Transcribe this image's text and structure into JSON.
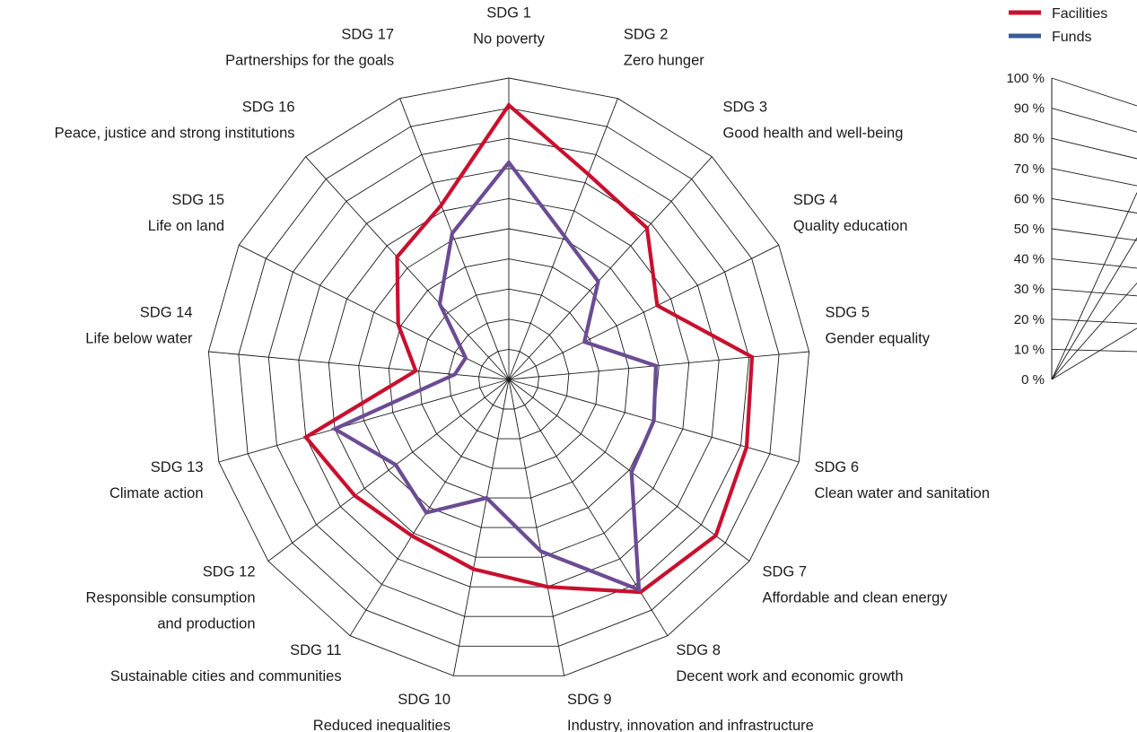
{
  "chart_data": {
    "type": "radar",
    "categories": [
      {
        "code": "SDG 1",
        "name": "No poverty"
      },
      {
        "code": "SDG 2",
        "name": "Zero hunger"
      },
      {
        "code": "SDG 3",
        "name": "Good health and well-being"
      },
      {
        "code": "SDG 4",
        "name": "Quality education"
      },
      {
        "code": "SDG 5",
        "name": "Gender equality"
      },
      {
        "code": "SDG 6",
        "name": "Clean water and sanitation"
      },
      {
        "code": "SDG 7",
        "name": "Affordable and clean energy"
      },
      {
        "code": "SDG 8",
        "name": "Decent work and economic growth"
      },
      {
        "code": "SDG 9",
        "name": "Industry, innovation and infrastructure"
      },
      {
        "code": "SDG 10",
        "name": "Reduced inequalities"
      },
      {
        "code": "SDG 11",
        "name": "Sustainable cities and communities"
      },
      {
        "code": "SDG 12",
        "name": "Responsible consumption and production"
      },
      {
        "code": "SDG 13",
        "name": "Climate action"
      },
      {
        "code": "SDG 14",
        "name": "Life below water"
      },
      {
        "code": "SDG 15",
        "name": "Life on land"
      },
      {
        "code": "SDG 16",
        "name": "Peace, justice and strong institutions"
      },
      {
        "code": "SDG 17",
        "name": "Partnerships for the goals"
      }
    ],
    "series": [
      {
        "name": "Facilities",
        "color": "#c8102e",
        "values": [
          91,
          73,
          68,
          55,
          81,
          82,
          86,
          83,
          70,
          64,
          61,
          64,
          70,
          31,
          41,
          55,
          62
        ]
      },
      {
        "name": "Funds",
        "color": "#6b4c93",
        "values": [
          72,
          51,
          44,
          28,
          49,
          50,
          51,
          82,
          58,
          40,
          52,
          47,
          60,
          18,
          16,
          34,
          52
        ]
      }
    ],
    "legend": [
      {
        "label": "Facilities",
        "color": "#c8102e"
      },
      {
        "label": "Funds",
        "color": "#3a5a98"
      }
    ],
    "legend_position": "top-right",
    "radial_axis": {
      "min": 0,
      "max": 100,
      "ticks": [
        "0 %",
        "10 %",
        "20 %",
        "30 %",
        "40 %",
        "50 %",
        "60 %",
        "70 %",
        "80 %",
        "90 %",
        "100 %"
      ],
      "position": "right"
    },
    "grid": true
  }
}
